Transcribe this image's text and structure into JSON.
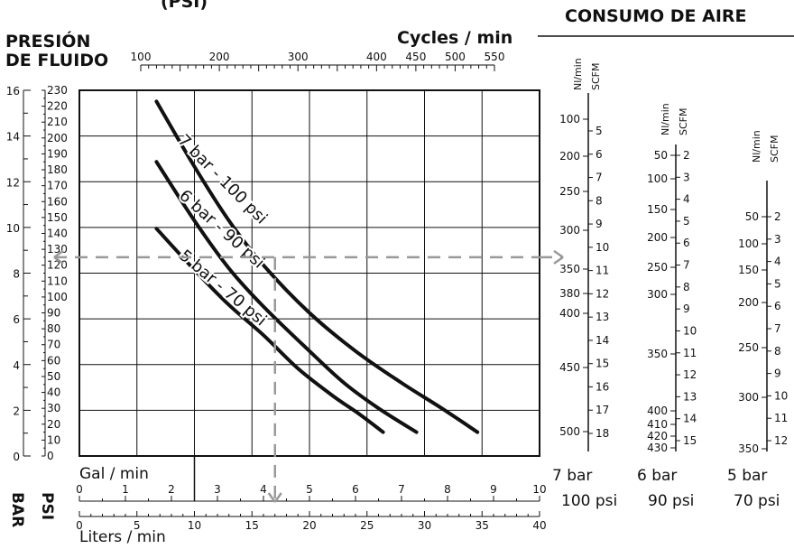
{
  "titles": {
    "top_left_cut": "(PSI)",
    "pressure_line1": "PRESIÓN",
    "pressure_line2": "DE FLUIDO",
    "cycles": "Cycles / min",
    "air": "CONSUMO DE AIRE",
    "gal": "Gal / min",
    "liters": "Liters / min",
    "psi_axis": "PSI",
    "bar_axis": "BAR",
    "nlmin": "Nl/min",
    "scfm": "SCFM"
  },
  "chart_data": {
    "type": "line",
    "x_liters_range": [
      0,
      40
    ],
    "x_gal_range": [
      0,
      10
    ],
    "cycles_range": [
      100,
      550
    ],
    "y_psi_range": [
      0,
      230
    ],
    "y_bar_range": [
      0,
      16
    ],
    "grid": true,
    "bar_ticks": [
      "0",
      "2",
      "4",
      "6",
      "8",
      "10",
      "12",
      "14",
      "16"
    ],
    "psi_ticks": [
      "0",
      "10",
      "20",
      "30",
      "40",
      "50",
      "60",
      "70",
      "80",
      "90",
      "100",
      "110",
      "120",
      "130",
      "140",
      "150",
      "160",
      "170",
      "180",
      "190",
      "200",
      "210",
      "220",
      "230"
    ],
    "cycles_ticks": [
      "100",
      "200",
      "300",
      "400",
      "450",
      "500",
      "550"
    ],
    "gal_ticks": [
      "0",
      "1",
      "2",
      "3",
      "4",
      "5",
      "6",
      "7",
      "8",
      "9",
      "10"
    ],
    "liters_ticks": [
      "0",
      "5",
      "10",
      "15",
      "20",
      "25",
      "30",
      "35",
      "40"
    ],
    "series": [
      {
        "name": "7 bar - 100 psi",
        "points": [
          [
            6.7,
            223
          ],
          [
            10,
            182
          ],
          [
            13,
            148
          ],
          [
            16,
            120
          ],
          [
            20,
            90
          ],
          [
            24,
            66
          ],
          [
            28,
            46
          ],
          [
            31.5,
            30
          ],
          [
            34.6,
            15
          ]
        ]
      },
      {
        "name": "6 bar - 90 psi",
        "points": [
          [
            6.7,
            185
          ],
          [
            10,
            148
          ],
          [
            13,
            118
          ],
          [
            16,
            94
          ],
          [
            20,
            66
          ],
          [
            23,
            46
          ],
          [
            26,
            30
          ],
          [
            29.3,
            15
          ]
        ]
      },
      {
        "name": "5 bar - 70 psi",
        "points": [
          [
            6.7,
            143
          ],
          [
            10,
            117
          ],
          [
            13,
            95
          ],
          [
            16,
            76
          ],
          [
            19,
            55
          ],
          [
            22,
            38
          ],
          [
            24.4,
            26
          ],
          [
            26.4,
            15
          ]
        ]
      }
    ],
    "example": {
      "pressure_psi": 125,
      "flow_liters": 17,
      "label_note": "dashed example line"
    }
  },
  "air_scales": [
    {
      "bar_label": "7 bar",
      "psi_label": "100 psi",
      "nl": [
        "100",
        "200",
        "250",
        "300",
        "350",
        "380",
        "400",
        "450",
        "500"
      ],
      "scfm": [
        "5",
        "6",
        "7",
        "8",
        "9",
        "10",
        "11",
        "12",
        "13",
        "14",
        "15",
        "16",
        "17",
        "18"
      ]
    },
    {
      "bar_label": "6 bar",
      "psi_label": "90 psi",
      "nl": [
        "50",
        "100",
        "150",
        "200",
        "250",
        "300",
        "350",
        "400",
        "410",
        "420",
        "430"
      ],
      "scfm": [
        "2",
        "3",
        "4",
        "5",
        "6",
        "7",
        "8",
        "9",
        "10",
        "11",
        "12",
        "13",
        "14",
        "15"
      ]
    },
    {
      "bar_label": "5 bar",
      "psi_label": "70 psi",
      "nl": [
        "50",
        "100",
        "150",
        "200",
        "250",
        "300",
        "350"
      ],
      "scfm": [
        "2",
        "3",
        "4",
        "5",
        "6",
        "7",
        "8",
        "9",
        "10",
        "11",
        "12"
      ]
    }
  ]
}
